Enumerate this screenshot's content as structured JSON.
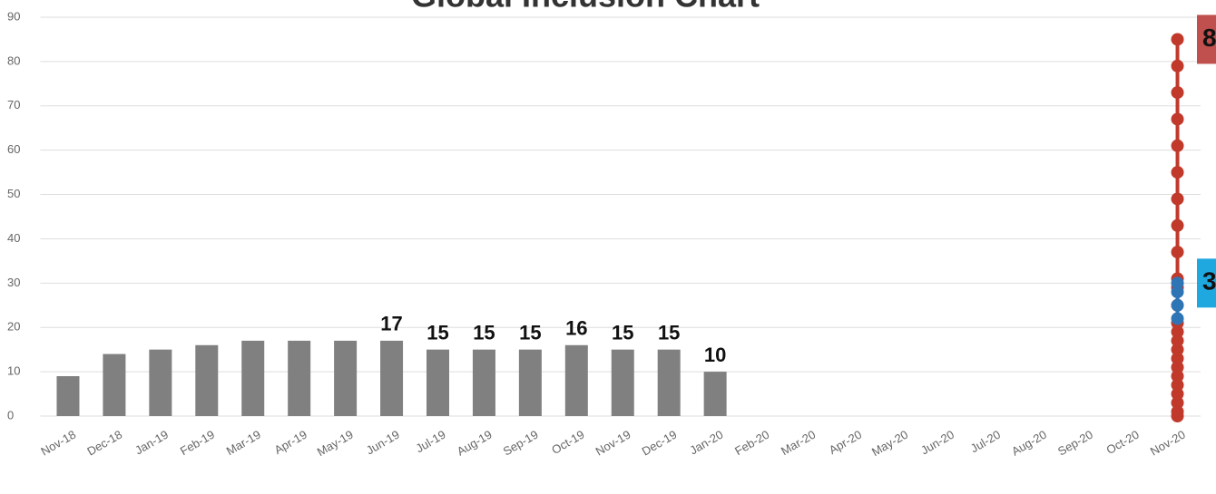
{
  "chart_data": {
    "type": "bar",
    "title": "Global Inclusion Chart",
    "categories": [
      "Nov-18",
      "Dec-18",
      "Jan-19",
      "Feb-19",
      "Mar-19",
      "Apr-19",
      "May-19",
      "Jun-19",
      "Jul-19",
      "Aug-19",
      "Sep-19",
      "Oct-19",
      "Nov-19",
      "Dec-19",
      "Jan-20",
      "Feb-20",
      "Mar-20",
      "Apr-20",
      "May-20",
      "Jun-20",
      "Jul-20",
      "Aug-20",
      "Sep-20",
      "Oct-20",
      "Nov-20"
    ],
    "values": [
      9,
      14,
      15,
      16,
      17,
      17,
      17,
      17,
      15,
      15,
      15,
      16,
      15,
      15,
      10,
      null,
      null,
      null,
      null,
      null,
      null,
      null,
      null,
      null,
      null
    ],
    "value_labels": [
      null,
      null,
      null,
      null,
      null,
      null,
      null,
      17,
      15,
      15,
      15,
      16,
      15,
      15,
      10,
      null,
      null,
      null,
      null,
      null,
      null,
      null,
      null,
      null,
      null
    ],
    "color": "#808080",
    "dot_series": [
      {
        "category": "Nov-20",
        "color": "#c0392b",
        "values": [
          0,
          1,
          3,
          5,
          7,
          9,
          11,
          13,
          15,
          17,
          19,
          21,
          25,
          29,
          31,
          37,
          43,
          49,
          55,
          61,
          67,
          73,
          79,
          85
        ]
      },
      {
        "category": "Nov-20",
        "color": "#2e75b6",
        "values": [
          22,
          25,
          28,
          30
        ]
      }
    ],
    "ylim": [
      0,
      90
    ],
    "yticks": [
      0,
      10,
      20,
      30,
      40,
      50,
      60,
      70,
      80,
      90
    ],
    "grid": true
  }
}
